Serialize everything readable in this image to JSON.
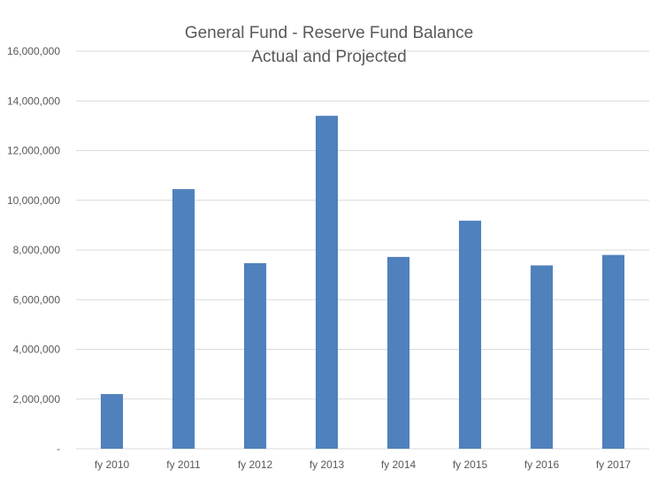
{
  "chart_data": {
    "type": "bar",
    "title": "General Fund - Reserve Fund Balance",
    "subtitle": "Actual and Projected",
    "xlabel": "",
    "ylabel": "",
    "categories": [
      "fy 2010",
      "fy 2011",
      "fy 2012",
      "fy 2013",
      "fy 2014",
      "fy 2015",
      "fy 2016",
      "fy 2017"
    ],
    "values": [
      2200000,
      10450000,
      7470000,
      13400000,
      7720000,
      9180000,
      7380000,
      7800000
    ],
    "ylim": [
      0,
      16000000
    ],
    "yticks": [
      0,
      2000000,
      4000000,
      6000000,
      8000000,
      10000000,
      12000000,
      14000000,
      16000000
    ],
    "ytick_labels": [
      "-",
      "2,000,000",
      "4,000,000",
      "6,000,000",
      "8,000,000",
      "10,000,000",
      "12,000,000",
      "14,000,000",
      "16,000,000"
    ],
    "bar_color": "#4F81BD",
    "grid": true,
    "gridline_color": "#D9D9D9",
    "legend": "none"
  }
}
